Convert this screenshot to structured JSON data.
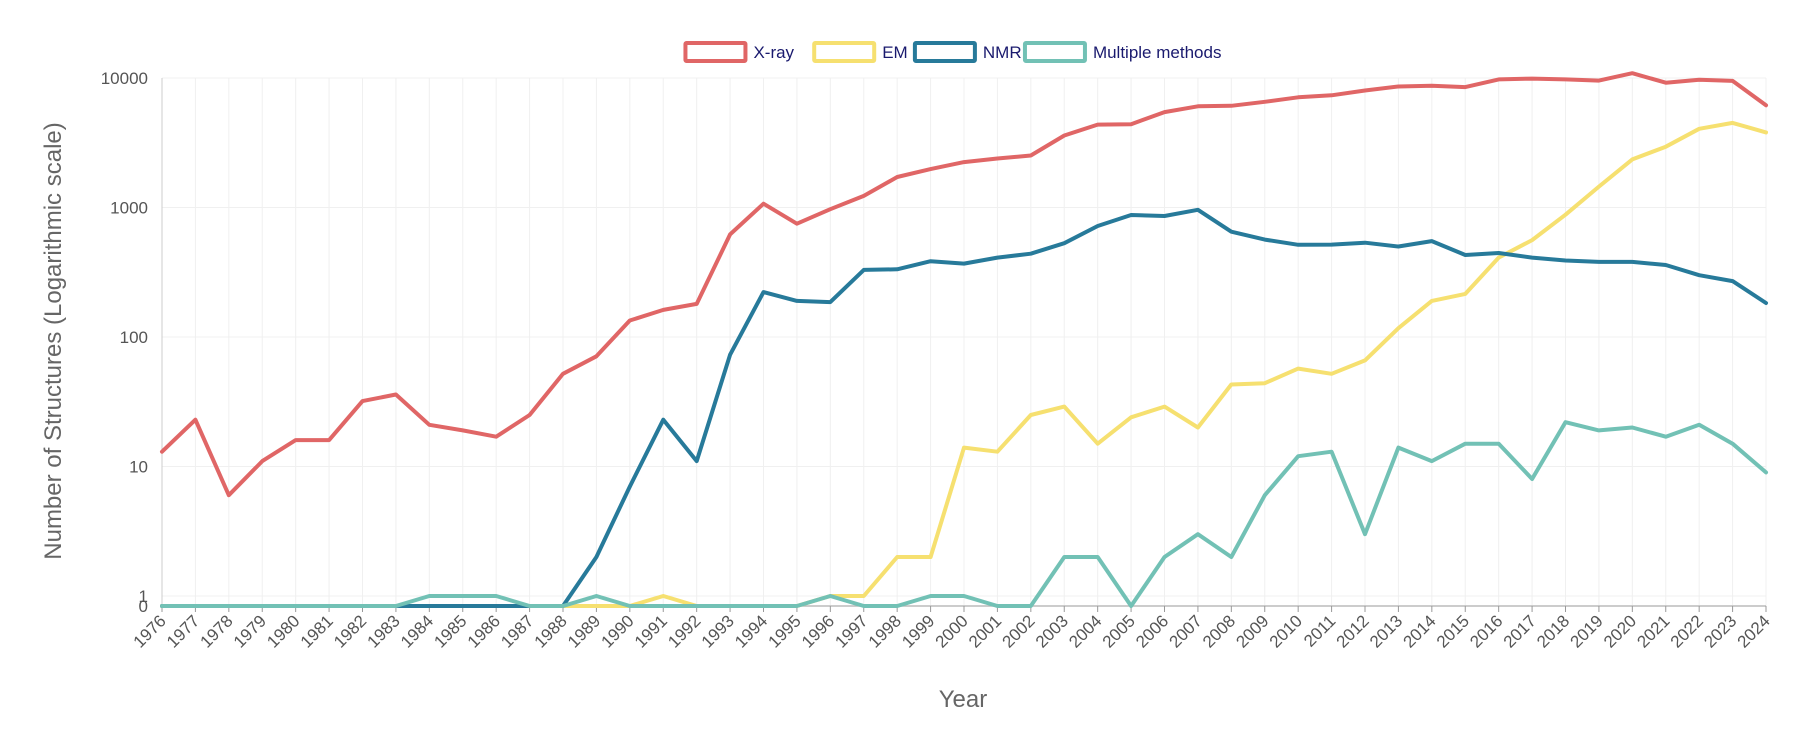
{
  "chart_data": {
    "type": "line",
    "title": "",
    "xlabel": "Year",
    "ylabel": "Number of Structures (Logarithmic scale)",
    "yscale": "log (zero shown at baseline)",
    "ylim": [
      0,
      10000
    ],
    "yticks": [
      {
        "value": 0,
        "label": "0"
      },
      {
        "value": 1,
        "label": "1"
      },
      {
        "value": 10,
        "label": "10"
      },
      {
        "value": 100,
        "label": "100"
      },
      {
        "value": 1000,
        "label": "1000"
      },
      {
        "value": 10000,
        "label": "10000"
      }
    ],
    "x": [
      "1976",
      "1977",
      "1978",
      "1979",
      "1980",
      "1981",
      "1982",
      "1983",
      "1984",
      "1985",
      "1986",
      "1987",
      "1988",
      "1989",
      "1990",
      "1991",
      "1992",
      "1993",
      "1994",
      "1995",
      "1996",
      "1997",
      "1998",
      "1999",
      "2000",
      "2001",
      "2002",
      "2003",
      "2004",
      "2005",
      "2006",
      "2007",
      "2008",
      "2009",
      "2010",
      "2011",
      "2012",
      "2013",
      "2014",
      "2015",
      "2016",
      "2017",
      "2018",
      "2019",
      "2020",
      "2021",
      "2022",
      "2023",
      "2024"
    ],
    "legend_position": "top-center",
    "grid": true,
    "series": [
      {
        "name": "X-ray",
        "color": "#e06666",
        "values": [
          13,
          23,
          6,
          11,
          16,
          16,
          32,
          36,
          21,
          19,
          17,
          25,
          52,
          71,
          134,
          162,
          180,
          620,
          1070,
          750,
          970,
          1230,
          1720,
          1980,
          2240,
          2390,
          2520,
          3600,
          4370,
          4400,
          5450,
          6050,
          6100,
          6550,
          7100,
          7350,
          8000,
          8600,
          8700,
          8500,
          9750,
          9900,
          9750,
          9550,
          10900,
          9200,
          9700,
          9500,
          6150
        ]
      },
      {
        "name": "EM",
        "color": "#f6e070",
        "values": [
          0,
          0,
          0,
          0,
          0,
          0,
          0,
          0,
          0,
          0,
          0,
          0,
          0,
          0,
          0,
          1,
          0,
          0,
          0,
          0,
          1,
          1,
          2,
          2,
          14,
          13,
          25,
          29,
          15,
          24,
          29,
          20,
          43,
          44,
          57,
          52,
          66,
          117,
          190,
          215,
          410,
          560,
          880,
          1450,
          2350,
          2950,
          4050,
          4500,
          3800
        ]
      },
      {
        "name": "NMR",
        "color": "#277a9a",
        "values": [
          0,
          0,
          0,
          0,
          0,
          0,
          0,
          0,
          0,
          0,
          0,
          0,
          0,
          2,
          7,
          23,
          11,
          73,
          222,
          190,
          186,
          330,
          333,
          385,
          369,
          410,
          440,
          530,
          720,
          875,
          860,
          960,
          650,
          565,
          515,
          517,
          535,
          500,
          550,
          430,
          445,
          410,
          390,
          380,
          380,
          360,
          300,
          270,
          183
        ]
      },
      {
        "name": "Multiple methods",
        "color": "#72c1b5",
        "values": [
          0,
          0,
          0,
          0,
          0,
          0,
          0,
          0,
          1,
          1,
          1,
          0,
          0,
          1,
          0,
          0,
          0,
          0,
          0,
          0,
          1,
          0,
          0,
          1,
          1,
          0,
          0,
          2,
          2,
          0,
          2,
          3,
          2,
          6,
          12,
          13,
          3,
          14,
          11,
          15,
          15,
          8,
          22,
          19,
          20,
          17,
          21,
          15,
          9
        ]
      }
    ]
  }
}
